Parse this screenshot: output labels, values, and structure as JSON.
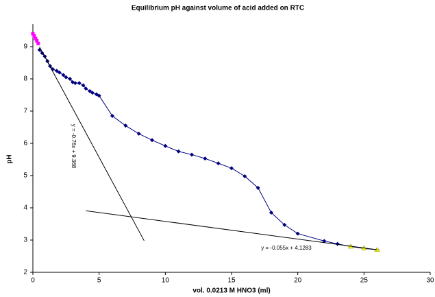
{
  "chart_data": {
    "type": "scatter",
    "title": "Equilibrium pH against volume of acid added on RTC",
    "x_label": "vol. 0.0213 M HNO3 (ml)",
    "y_label": "pH",
    "xlim": [
      0,
      30
    ],
    "xticks": [
      0,
      5,
      10,
      15,
      20,
      25,
      30
    ],
    "ylim": [
      2,
      9.7
    ],
    "yticks": [
      2,
      3,
      4,
      5,
      6,
      7,
      8,
      9
    ],
    "series": [
      {
        "color": "#ff00ff",
        "marker": "square",
        "line": false,
        "x": [
          0,
          0.1,
          0.2,
          0.3,
          0.4
        ],
        "values": [
          9.4,
          9.33,
          9.25,
          9.18,
          9.1
        ]
      },
      {
        "color": "#000080",
        "marker": "diamond",
        "line": true,
        "x": [
          0.5,
          0.7,
          0.9,
          1.1,
          1.3,
          1.5,
          1.8,
          2.0,
          2.3,
          2.5,
          2.8,
          3.0,
          3.2,
          3.5,
          3.8,
          4.0,
          4.3,
          4.5,
          4.8,
          5.0,
          6,
          7,
          8,
          9,
          10,
          11,
          12,
          13,
          14,
          15,
          16,
          17,
          18,
          19,
          20,
          22,
          23,
          24,
          25,
          26
        ],
        "values": [
          8.9,
          8.8,
          8.7,
          8.55,
          8.4,
          8.3,
          8.25,
          8.2,
          8.12,
          8.05,
          8.0,
          7.9,
          7.87,
          7.87,
          7.8,
          7.7,
          7.62,
          7.57,
          7.52,
          7.48,
          6.85,
          6.55,
          6.3,
          6.1,
          5.92,
          5.75,
          5.65,
          5.53,
          5.38,
          5.23,
          4.98,
          4.62,
          3.85,
          3.47,
          3.2,
          2.97,
          2.88,
          2.8,
          2.74,
          2.7
        ]
      },
      {
        "color": "#ffff00",
        "marker": "triangle",
        "line": false,
        "x": [
          24,
          25,
          26
        ],
        "values": [
          2.8,
          2.75,
          2.7
        ]
      },
      {
        "color": "#000000",
        "marker": "none",
        "line": true,
        "x": [
          0.5,
          8.4
        ],
        "values": [
          8.99,
          2.98
        ]
      },
      {
        "color": "#000000",
        "marker": "none",
        "line": true,
        "x": [
          4,
          26
        ],
        "values": [
          3.91,
          2.7
        ]
      }
    ],
    "annotations": [
      "y = -0.76x + 9.368",
      "y = -0.055x + 4.1283"
    ]
  }
}
